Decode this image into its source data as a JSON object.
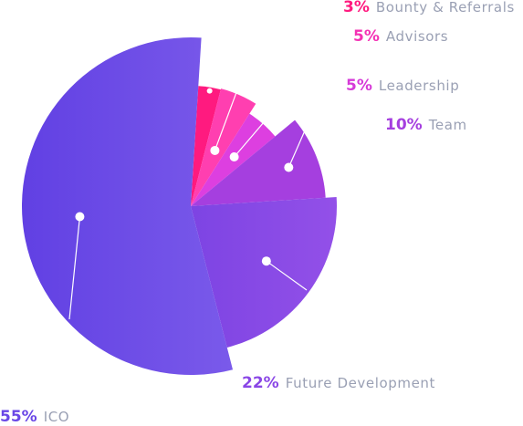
{
  "chart_data": {
    "type": "pie",
    "title": "",
    "legend_placement": "labels around chart",
    "slices": [
      {
        "label": "Bounty & Referrals",
        "percent_label": "3%",
        "value": 3,
        "color": "#ff1a7f",
        "pct_color": "#ff1a7f"
      },
      {
        "label": "Advisors",
        "percent_label": "5%",
        "value": 5,
        "color": "#ff3fb0",
        "pct_color": "#f431b4"
      },
      {
        "label": "Leadership",
        "percent_label": "5%",
        "value": 5,
        "color": "#dd3fe0",
        "pct_color": "#d63ad8"
      },
      {
        "label": "Team",
        "percent_label": "10%",
        "value": 10,
        "color": "#a53fdf",
        "pct_color": "#a53fdf"
      },
      {
        "label": "Future Development",
        "percent_label": "22%",
        "value": 22,
        "color": "#8a47e6",
        "pct_color": "#8a47e6"
      },
      {
        "label": "ICO",
        "percent_label": "55%",
        "value": 55,
        "color": "#6a47e6",
        "pct_color": "#6a47e6"
      }
    ]
  }
}
